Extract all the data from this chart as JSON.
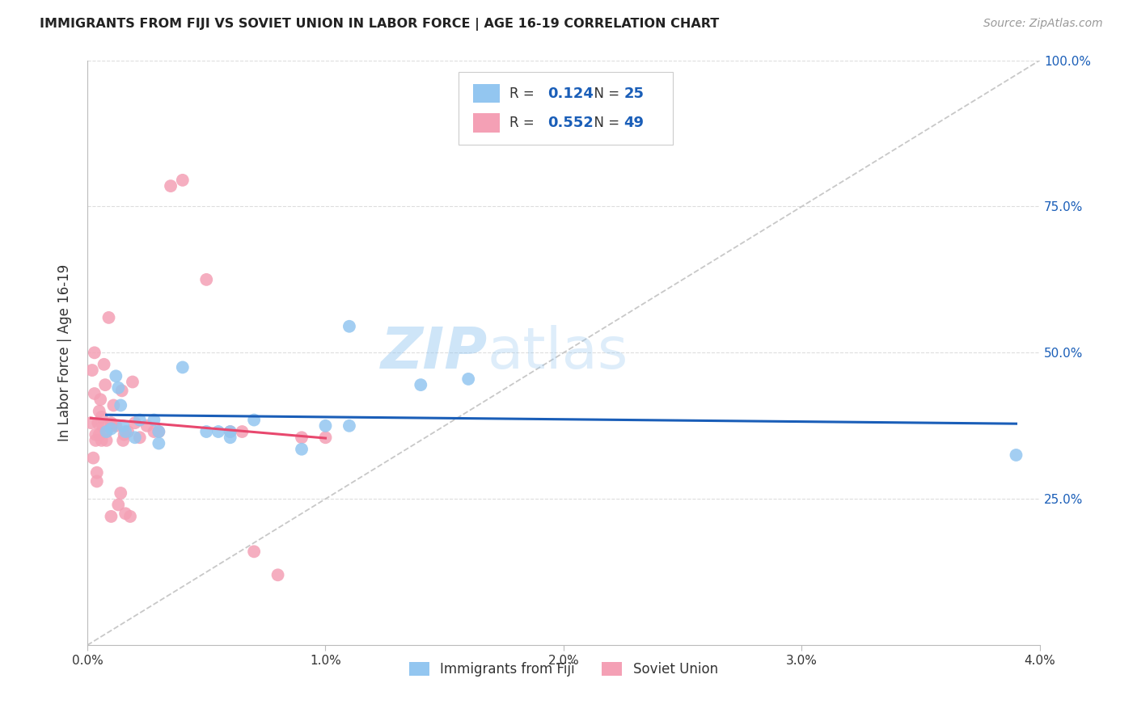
{
  "title": "IMMIGRANTS FROM FIJI VS SOVIET UNION IN LABOR FORCE | AGE 16-19 CORRELATION CHART",
  "source": "Source: ZipAtlas.com",
  "ylabel": "In Labor Force | Age 16-19",
  "xlim": [
    0.0,
    0.04
  ],
  "ylim": [
    0.0,
    1.0
  ],
  "xtick_labels": [
    "0.0%",
    "1.0%",
    "2.0%",
    "3.0%",
    "4.0%"
  ],
  "xtick_vals": [
    0.0,
    0.01,
    0.02,
    0.03,
    0.04
  ],
  "ytick_labels_right": [
    "100.0%",
    "75.0%",
    "50.0%",
    "25.0%"
  ],
  "ytick_vals_right": [
    1.0,
    0.75,
    0.5,
    0.25
  ],
  "fiji_color": "#93c6f0",
  "soviet_color": "#f4a0b5",
  "fiji_line_color": "#1a5eb8",
  "soviet_line_color": "#e8486e",
  "diagonal_color": "#c8c8c8",
  "fiji_R": "0.124",
  "fiji_N": "25",
  "soviet_R": "0.552",
  "soviet_N": "49",
  "legend_label_fiji": "Immigrants from Fiji",
  "legend_label_soviet": "Soviet Union",
  "watermark_zip": "ZIP",
  "watermark_atlas": "atlas",
  "fiji_x": [
    0.0008,
    0.001,
    0.0012,
    0.0013,
    0.0014,
    0.0015,
    0.0016,
    0.002,
    0.0022,
    0.0028,
    0.003,
    0.003,
    0.004,
    0.005,
    0.0055,
    0.006,
    0.006,
    0.007,
    0.009,
    0.01,
    0.011,
    0.011,
    0.014,
    0.016,
    0.039
  ],
  "fiji_y": [
    0.365,
    0.37,
    0.46,
    0.44,
    0.41,
    0.375,
    0.365,
    0.355,
    0.385,
    0.385,
    0.345,
    0.365,
    0.475,
    0.365,
    0.365,
    0.365,
    0.355,
    0.385,
    0.335,
    0.375,
    0.375,
    0.545,
    0.445,
    0.455,
    0.325
  ],
  "soviet_x": [
    0.00015,
    0.0002,
    0.00025,
    0.0003,
    0.0003,
    0.00035,
    0.00035,
    0.0004,
    0.0004,
    0.00045,
    0.0005,
    0.0005,
    0.00055,
    0.0006,
    0.0006,
    0.00065,
    0.0007,
    0.00075,
    0.0008,
    0.0008,
    0.0009,
    0.001,
    0.001,
    0.001,
    0.0011,
    0.0012,
    0.0013,
    0.0014,
    0.00145,
    0.0015,
    0.00155,
    0.0016,
    0.0017,
    0.0018,
    0.0019,
    0.002,
    0.0022,
    0.0025,
    0.0028,
    0.003,
    0.0035,
    0.004,
    0.005,
    0.006,
    0.0065,
    0.007,
    0.008,
    0.009,
    0.01
  ],
  "soviet_y": [
    0.38,
    0.47,
    0.32,
    0.5,
    0.43,
    0.36,
    0.35,
    0.295,
    0.28,
    0.38,
    0.36,
    0.4,
    0.42,
    0.35,
    0.39,
    0.375,
    0.48,
    0.445,
    0.35,
    0.365,
    0.56,
    0.375,
    0.22,
    0.38,
    0.41,
    0.375,
    0.24,
    0.26,
    0.435,
    0.35,
    0.36,
    0.225,
    0.365,
    0.22,
    0.45,
    0.38,
    0.355,
    0.375,
    0.365,
    0.365,
    0.785,
    0.795,
    0.625,
    0.365,
    0.365,
    0.16,
    0.12,
    0.355,
    0.355
  ]
}
